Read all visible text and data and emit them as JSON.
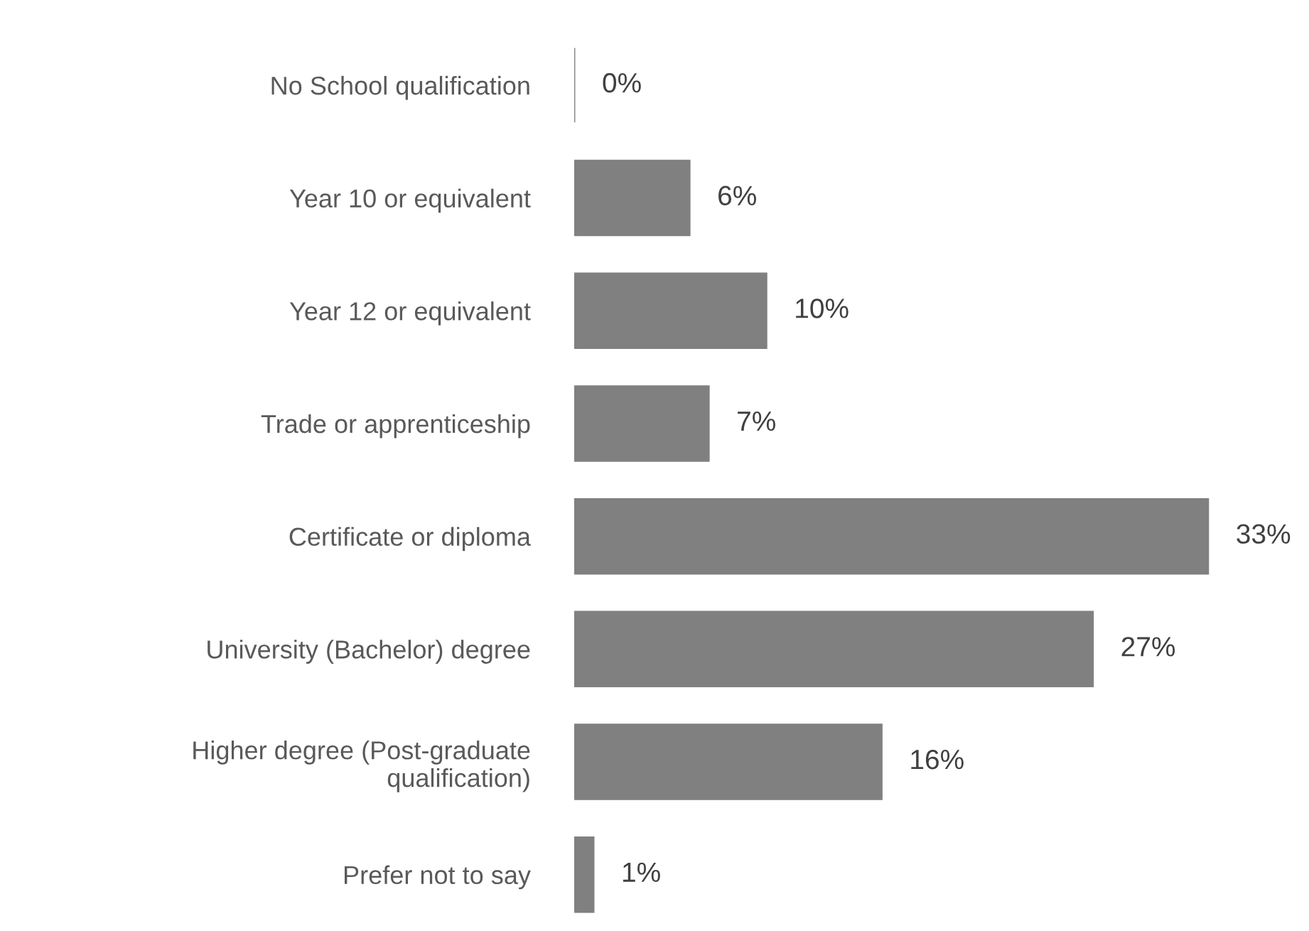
{
  "chart_data": {
    "type": "bar",
    "orientation": "horizontal",
    "categories": [
      "No School qualification",
      "Year 10 or equivalent",
      "Year 12 or equivalent",
      "Trade or apprenticeship",
      "Certificate or diploma",
      "University (Bachelor) degree",
      "Higher degree (Post-graduate\nqualification)",
      "Prefer not to say"
    ],
    "values": [
      0,
      6,
      10,
      7,
      33,
      27,
      16,
      1
    ],
    "value_labels": [
      "0%",
      "6%",
      "10%",
      "7%",
      "33%",
      "27%",
      "16%",
      "1%"
    ],
    "color": "#808080",
    "grid": false,
    "legend": false
  }
}
